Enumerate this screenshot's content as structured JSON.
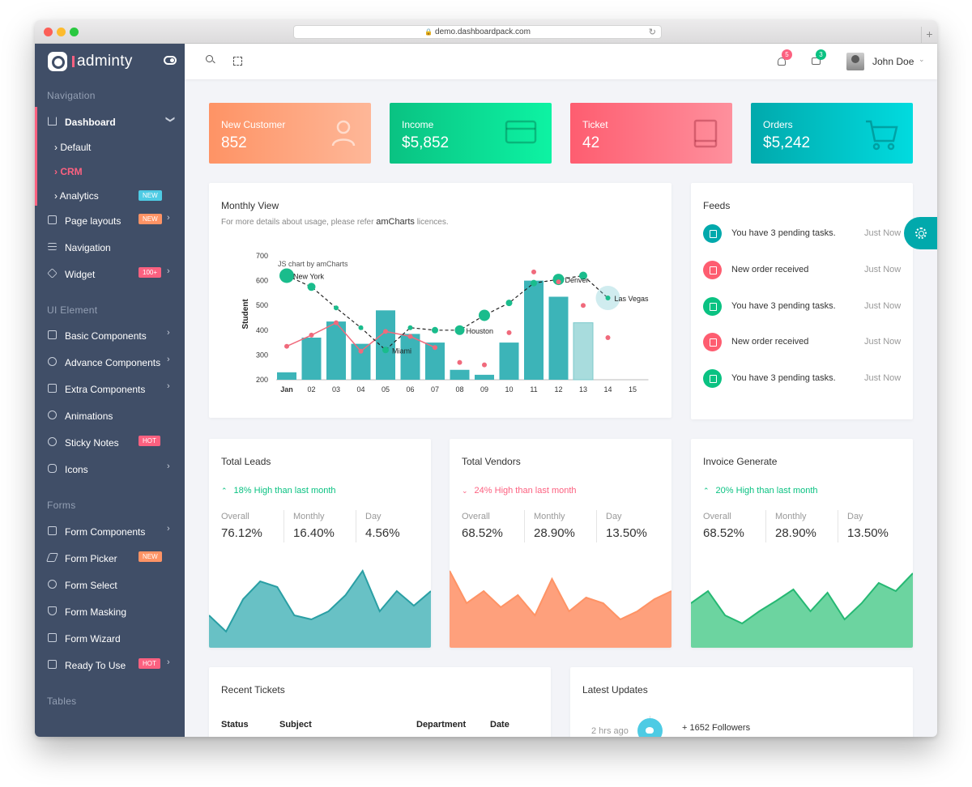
{
  "browser": {
    "url": "demo.dashboardpack.com"
  },
  "brand": {
    "name": "adminty"
  },
  "header": {
    "notifications_count": "5",
    "messages_count": "3",
    "user_name": "John Doe"
  },
  "sidebar": {
    "sections": {
      "navigation": "Navigation",
      "ui_element": "UI Element",
      "forms": "Forms",
      "tables": "Tables"
    },
    "dashboard": {
      "label": "Dashboard"
    },
    "dashboard_sub": [
      {
        "label": "Default"
      },
      {
        "label": "CRM"
      },
      {
        "label": "Analytics",
        "badge": "NEW"
      }
    ],
    "nav_items": [
      {
        "label": "Page layouts",
        "badge": "NEW"
      },
      {
        "label": "Navigation"
      },
      {
        "label": "Widget",
        "badge": "100+"
      }
    ],
    "ui_items": [
      {
        "label": "Basic Components"
      },
      {
        "label": "Advance Components"
      },
      {
        "label": "Extra Components"
      },
      {
        "label": "Animations"
      },
      {
        "label": "Sticky Notes",
        "badge": "HOT"
      },
      {
        "label": "Icons"
      }
    ],
    "form_items": [
      {
        "label": "Form Components"
      },
      {
        "label": "Form Picker",
        "badge": "NEW"
      },
      {
        "label": "Form Select"
      },
      {
        "label": "Form Masking"
      },
      {
        "label": "Form Wizard"
      },
      {
        "label": "Ready To Use",
        "badge": "HOT"
      }
    ]
  },
  "stats": [
    {
      "title": "New Customer",
      "value": "852",
      "icon": "user-icon"
    },
    {
      "title": "Income",
      "value": "$5,852",
      "icon": "credit-card-icon"
    },
    {
      "title": "Ticket",
      "value": "42",
      "icon": "book-icon"
    },
    {
      "title": "Orders",
      "value": "$5,242",
      "icon": "cart-icon"
    }
  ],
  "monthly": {
    "title": "Monthly View",
    "subtitle_prefix": "For more details about usage, please refer",
    "subtitle_link": "amCharts",
    "subtitle_suffix": "licences."
  },
  "chart_data": {
    "type": "bar",
    "watermark": "JS chart by amCharts",
    "ylabel": "Student",
    "ylim": [
      200,
      700
    ],
    "yticks": [
      200,
      300,
      400,
      500,
      600,
      700
    ],
    "categories": [
      "Jan",
      "02",
      "03",
      "04",
      "05",
      "06",
      "07",
      "08",
      "09",
      "10",
      "11",
      "12",
      "13",
      "14",
      "15"
    ],
    "bars": [
      230,
      370,
      435,
      345,
      480,
      385,
      350,
      240,
      220,
      350,
      600,
      535,
      430,
      null,
      null
    ],
    "line": [
      335,
      380,
      430,
      315,
      395,
      375,
      330,
      null,
      null,
      null,
      null,
      null,
      null,
      null,
      null
    ],
    "dashed": [
      620,
      575,
      490,
      410,
      320,
      410,
      400,
      400,
      460,
      510,
      590,
      605,
      620,
      530,
      null
    ],
    "dashed_label_points": {
      "0": "New York",
      "4": "Miami",
      "7": "Houston",
      "11": "Denver",
      "13": "Las Vegas"
    },
    "red_dots": [
      null,
      null,
      null,
      null,
      null,
      null,
      null,
      270,
      260,
      390,
      635,
      595,
      500,
      370,
      null
    ],
    "colors": {
      "bar": "#3cb4b8",
      "bar_light": "#a8dcdd",
      "line": "#f06a7c",
      "dashed_point": "#1abc8c"
    }
  },
  "feeds": {
    "title": "Feeds",
    "items": [
      {
        "text": "You have 3 pending tasks.",
        "time": "Just Now",
        "color": "teal",
        "icon": "bell-icon"
      },
      {
        "text": "New order received",
        "time": "Just Now",
        "color": "red",
        "icon": "cart-icon"
      },
      {
        "text": "You have 3 pending tasks.",
        "time": "Just Now",
        "color": "green",
        "icon": "document-icon"
      },
      {
        "text": "New order received",
        "time": "Just Now",
        "color": "red",
        "icon": "cart-icon"
      },
      {
        "text": "You have 3 pending tasks.",
        "time": "Just Now",
        "color": "green",
        "icon": "document-icon"
      }
    ]
  },
  "summary": [
    {
      "title": "Total Leads",
      "trend": "18% High than last month",
      "trend_color": "#0ac282",
      "trend_dir": "up",
      "overall_label": "Overall",
      "overall": "76.12%",
      "monthly_label": "Monthly",
      "monthly": "16.40%",
      "day_label": "Day",
      "day": "4.56%",
      "fill": "#68c1c5",
      "stroke": "#2a9fa4",
      "area": [
        40,
        20,
        60,
        82,
        75,
        40,
        35,
        45,
        65,
        95,
        45,
        70,
        52,
        70
      ]
    },
    {
      "title": "Total Vendors",
      "trend": "24% High than last month",
      "trend_color": "#fc6180",
      "trend_dir": "down",
      "overall_label": "Overall",
      "overall": "68.52%",
      "monthly_label": "Monthly",
      "monthly": "28.90%",
      "day_label": "Day",
      "day": "13.50%",
      "fill": "#fea07c",
      "stroke": "#fe9365",
      "area": [
        95,
        55,
        70,
        50,
        65,
        40,
        85,
        45,
        62,
        55,
        35,
        45,
        60,
        70
      ]
    },
    {
      "title": "Invoice Generate",
      "trend": "20% High than last month",
      "trend_color": "#0ac282",
      "trend_dir": "up",
      "overall_label": "Overall",
      "overall": "68.52%",
      "monthly_label": "Monthly",
      "monthly": "28.90%",
      "day_label": "Day",
      "day": "13.50%",
      "fill": "#6cd4a0",
      "stroke": "#26b873",
      "area": [
        55,
        70,
        40,
        30,
        45,
        58,
        72,
        45,
        68,
        35,
        55,
        80,
        70,
        92
      ]
    }
  ],
  "tickets": {
    "title": "Recent Tickets",
    "columns": [
      "Status",
      "Subject",
      "Department",
      "Date"
    ]
  },
  "updates": {
    "title": "Latest Updates",
    "items": [
      {
        "time": "2 hrs ago",
        "text": "+ 1652 Followers",
        "icon": "twitter-icon"
      }
    ]
  }
}
